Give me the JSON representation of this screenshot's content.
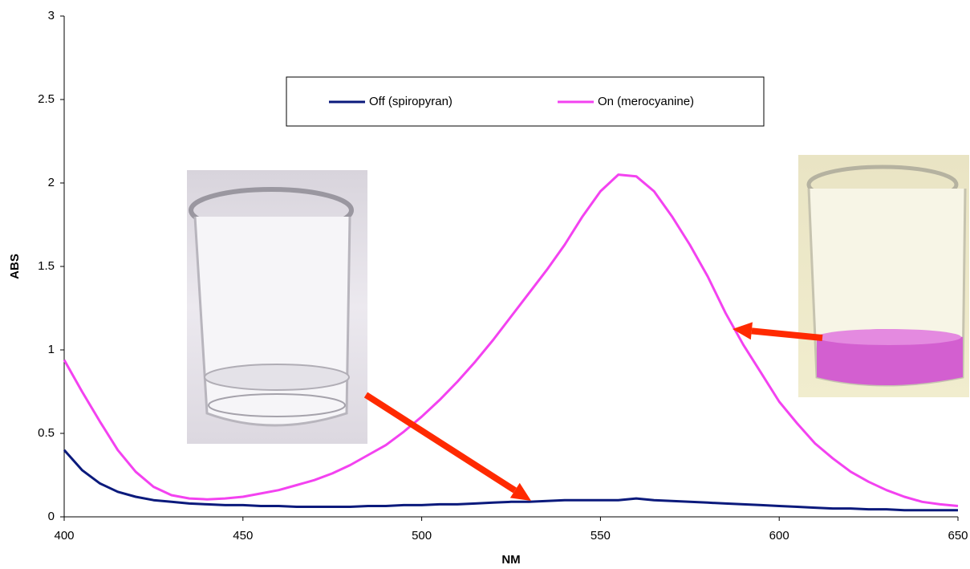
{
  "chart_data": {
    "type": "line",
    "x_label": "NM",
    "y_label": "ABS",
    "x": [
      400,
      405,
      410,
      415,
      420,
      425,
      430,
      435,
      440,
      445,
      450,
      455,
      460,
      465,
      470,
      475,
      480,
      485,
      490,
      495,
      500,
      505,
      510,
      515,
      520,
      525,
      530,
      535,
      540,
      545,
      550,
      555,
      560,
      565,
      570,
      575,
      580,
      585,
      590,
      595,
      600,
      605,
      610,
      615,
      620,
      625,
      630,
      635,
      640,
      645,
      650
    ],
    "series": [
      {
        "name": "Off (spiropyran)",
        "color": "#0b1a7c",
        "values": [
          0.4,
          0.28,
          0.2,
          0.15,
          0.12,
          0.1,
          0.09,
          0.08,
          0.075,
          0.07,
          0.07,
          0.065,
          0.065,
          0.06,
          0.06,
          0.06,
          0.06,
          0.065,
          0.065,
          0.07,
          0.07,
          0.075,
          0.075,
          0.08,
          0.085,
          0.09,
          0.09,
          0.095,
          0.1,
          0.1,
          0.1,
          0.1,
          0.11,
          0.1,
          0.095,
          0.09,
          0.085,
          0.08,
          0.075,
          0.07,
          0.065,
          0.06,
          0.055,
          0.05,
          0.05,
          0.045,
          0.045,
          0.04,
          0.04,
          0.04,
          0.04
        ]
      },
      {
        "name": "On (merocyanine)",
        "color": "#f342f0",
        "values": [
          0.94,
          0.75,
          0.57,
          0.4,
          0.27,
          0.18,
          0.13,
          0.11,
          0.105,
          0.11,
          0.12,
          0.14,
          0.16,
          0.19,
          0.22,
          0.26,
          0.31,
          0.37,
          0.43,
          0.51,
          0.6,
          0.7,
          0.81,
          0.93,
          1.06,
          1.2,
          1.34,
          1.48,
          1.63,
          1.8,
          1.95,
          2.05,
          2.04,
          1.95,
          1.8,
          1.63,
          1.44,
          1.22,
          1.03,
          0.86,
          0.69,
          0.56,
          0.44,
          0.35,
          0.27,
          0.21,
          0.16,
          0.12,
          0.09,
          0.075,
          0.065
        ]
      }
    ],
    "xlim": [
      400,
      650
    ],
    "xticks": [
      400,
      450,
      500,
      550,
      600,
      650
    ],
    "ylim": [
      0,
      3
    ],
    "yticks": [
      0,
      0.5,
      1,
      1.5,
      2,
      2.5,
      3
    ],
    "grid": false
  }
}
